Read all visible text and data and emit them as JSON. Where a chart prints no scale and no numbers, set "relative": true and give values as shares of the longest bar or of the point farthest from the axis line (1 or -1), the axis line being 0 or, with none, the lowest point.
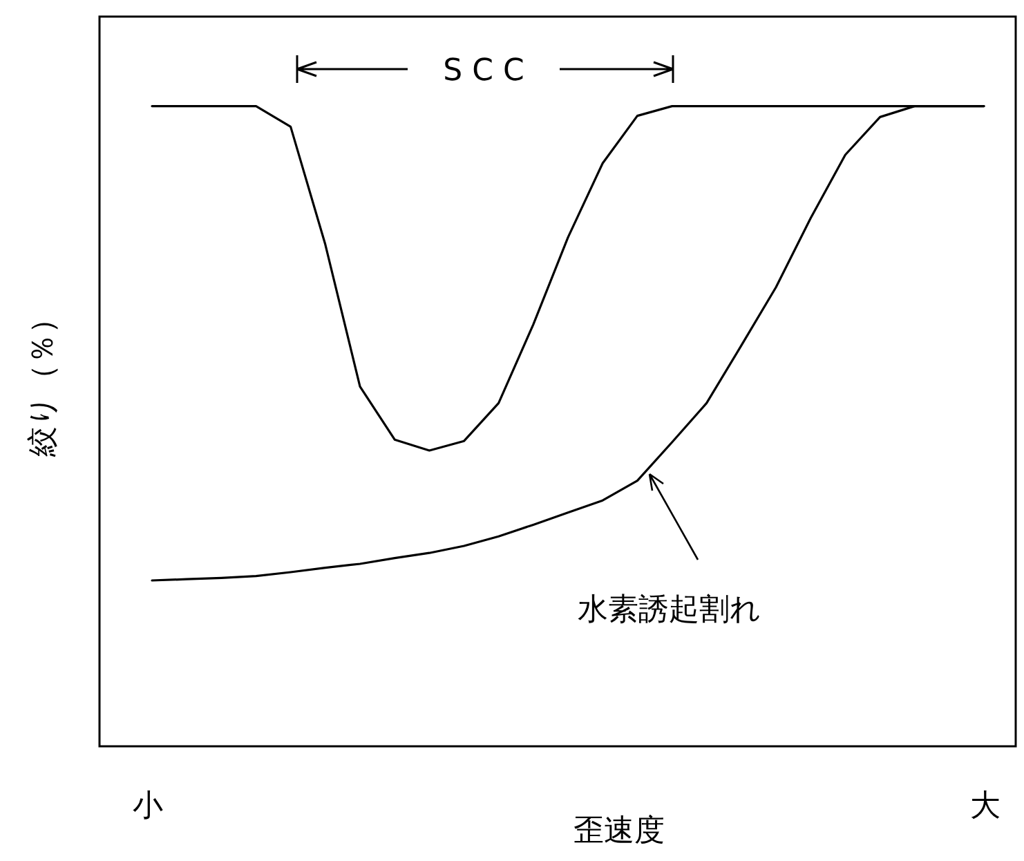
{
  "chart_data": {
    "type": "line",
    "relative": true,
    "xlabel": "歪速度",
    "ylabel": "絞り（％）",
    "categories": [
      null,
      null,
      null,
      null,
      null,
      null,
      null,
      null,
      null,
      null,
      null,
      null,
      null,
      null,
      null,
      null,
      null,
      null,
      null,
      null,
      null,
      null,
      null,
      null,
      null
    ],
    "annotations": [
      "S C C",
      "水素誘起割れ",
      "小",
      "大"
    ],
    "series": [
      {
        "color": "#000000",
        "values": [
          1,
          1,
          1,
          1,
          0.968,
          0.784,
          0.562,
          0.479,
          0.462,
          0.477,
          0.536,
          0.659,
          0.795,
          0.911,
          0.985,
          1,
          1,
          1,
          1,
          1,
          1,
          1,
          1,
          1,
          1
        ]
      },
      {
        "color": "#000000",
        "values": [
          0.259,
          0.261,
          0.263,
          0.266,
          0.272,
          0.279,
          0.285,
          0.294,
          0.302,
          0.313,
          0.328,
          0.346,
          0.365,
          0.384,
          0.415,
          0.475,
          0.536,
          0.626,
          0.717,
          0.825,
          0.924,
          0.983,
          1,
          1,
          1
        ]
      }
    ]
  }
}
